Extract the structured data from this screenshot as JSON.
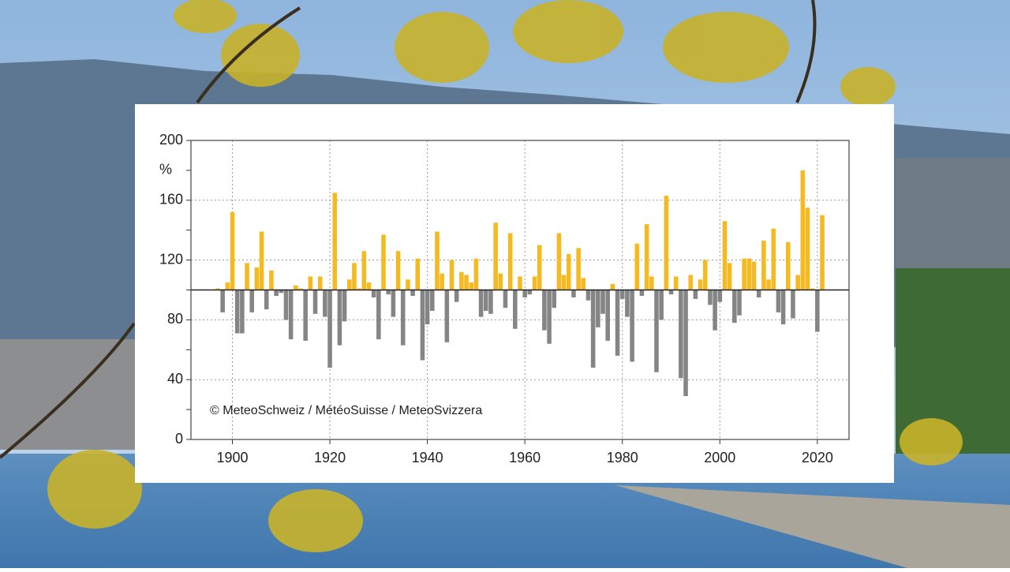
{
  "chart_data": {
    "type": "bar",
    "y_unit": "%",
    "annotation": "© MeteoSchweiz / MétéoSuisse / MeteoSvizzera",
    "baseline": 100,
    "colors": {
      "above": "#f5b922",
      "below": "#858585"
    },
    "xlim": [
      1891.5,
      2026.5
    ],
    "xticks": [
      1900,
      1920,
      1940,
      1960,
      1980,
      2000,
      2020
    ],
    "ylim": [
      0,
      200
    ],
    "yticks": [
      0,
      40,
      80,
      120,
      160,
      200
    ],
    "minor_yticks": [
      20,
      60,
      100,
      140,
      180
    ],
    "grid": true,
    "x": [
      1897,
      1898,
      1899,
      1900,
      1901,
      1902,
      1903,
      1904,
      1905,
      1906,
      1907,
      1908,
      1909,
      1910,
      1911,
      1912,
      1913,
      1914,
      1915,
      1916,
      1917,
      1918,
      1919,
      1920,
      1921,
      1922,
      1923,
      1924,
      1925,
      1926,
      1927,
      1928,
      1929,
      1930,
      1931,
      1932,
      1933,
      1934,
      1935,
      1936,
      1937,
      1938,
      1939,
      1940,
      1941,
      1942,
      1943,
      1944,
      1945,
      1946,
      1947,
      1948,
      1949,
      1950,
      1951,
      1952,
      1953,
      1954,
      1955,
      1956,
      1957,
      1958,
      1959,
      1960,
      1961,
      1962,
      1963,
      1964,
      1965,
      1966,
      1967,
      1968,
      1969,
      1970,
      1971,
      1972,
      1973,
      1974,
      1975,
      1976,
      1977,
      1978,
      1979,
      1980,
      1981,
      1982,
      1983,
      1984,
      1985,
      1986,
      1987,
      1988,
      1989,
      1990,
      1991,
      1992,
      1993,
      1994,
      1995,
      1996,
      1997,
      1998,
      1999,
      2000,
      2001,
      2002,
      2003,
      2004,
      2005,
      2006,
      2007,
      2008,
      2009,
      2010,
      2011,
      2012,
      2013,
      2014,
      2015,
      2016,
      2017,
      2018,
      2019,
      2020,
      2021
    ],
    "values": [
      101,
      85,
      105,
      152,
      71,
      71,
      118,
      85,
      115,
      139,
      87,
      113,
      96,
      98,
      80,
      67,
      103,
      101,
      66,
      109,
      84,
      109,
      82,
      48,
      165,
      63,
      79,
      107,
      118,
      101,
      126,
      105,
      95,
      67,
      137,
      97,
      82,
      126,
      63,
      107,
      96,
      121,
      53,
      77,
      86,
      139,
      111,
      65,
      120,
      92,
      112,
      110,
      105,
      121,
      82,
      86,
      84,
      145,
      111,
      88,
      138,
      74,
      109,
      95,
      97,
      109,
      130,
      73,
      64,
      88,
      138,
      110,
      124,
      95,
      128,
      108,
      93,
      48,
      75,
      84,
      66,
      104,
      56,
      94,
      82,
      52,
      131,
      96,
      144,
      109,
      45,
      80,
      163,
      97,
      109,
      41,
      29,
      110,
      94,
      107,
      120,
      90,
      73,
      92,
      146,
      118,
      78,
      83,
      121,
      121,
      119,
      95,
      133,
      107,
      141,
      85,
      77,
      132,
      81,
      110,
      180,
      155,
      101,
      72,
      150
    ]
  }
}
